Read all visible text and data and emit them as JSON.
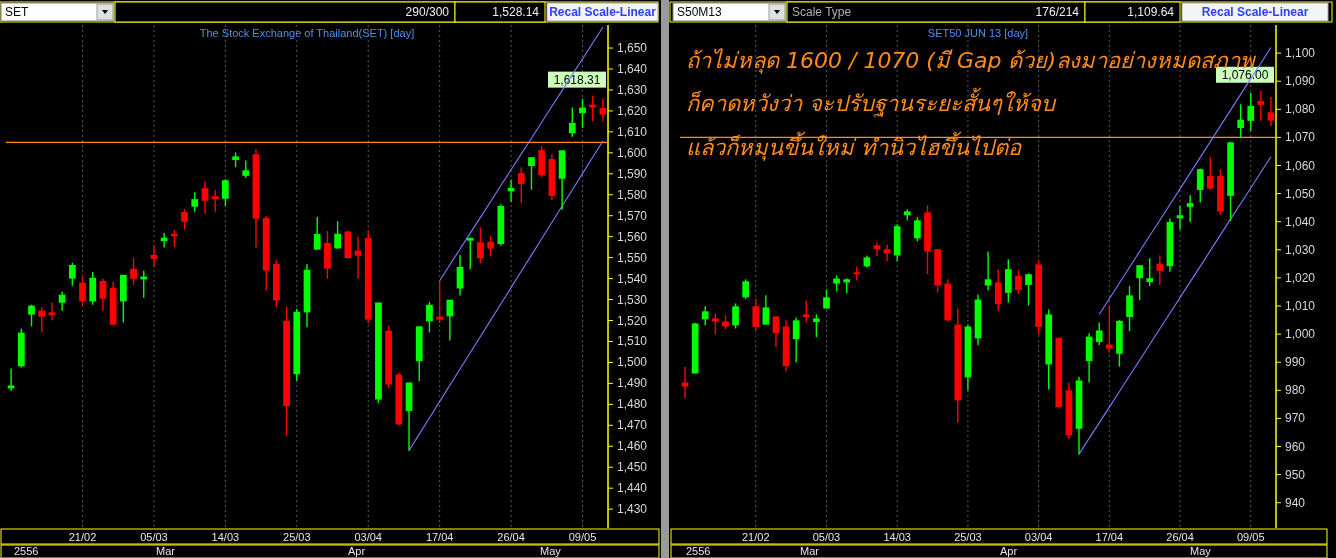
{
  "chart_data": [
    {
      "type": "candlestick",
      "title": "The Stock Exchange of Thailand(SET) [day]",
      "categories": [
        null,
        null,
        null,
        null,
        null,
        null,
        null,
        "21/02",
        null,
        null,
        null,
        null,
        null,
        null,
        "05/03",
        null,
        null,
        null,
        null,
        null,
        null,
        "14/03",
        null,
        null,
        null,
        null,
        null,
        null,
        "25/03",
        null,
        null,
        null,
        null,
        null,
        null,
        "03/04",
        null,
        null,
        null,
        null,
        null,
        null,
        "17/04",
        null,
        null,
        null,
        null,
        null,
        null,
        "26/04",
        null,
        null,
        null,
        null,
        null,
        null,
        "09/05",
        null,
        null
      ],
      "ohlc": [
        [
          1487.6,
          1497.1,
          1486.4,
          1489.0
        ],
        [
          1498.2,
          1516.1,
          1497.6,
          1514.2
        ],
        [
          1522.8,
          1527.5,
          1517.2,
          1527.1
        ],
        [
          1524.7,
          1526.3,
          1514.4,
          1521.8
        ],
        [
          1523.9,
          1528.5,
          1520.1,
          1522.5
        ],
        [
          1528.5,
          1533.7,
          1524.7,
          1532.3
        ],
        [
          1540.0,
          1547.5,
          1536.6,
          1546.5
        ],
        [
          1538.0,
          1541.0,
          1527.1,
          1529.1
        ],
        [
          1529.1,
          1543.2,
          1527.5,
          1540.4
        ],
        [
          1538.9,
          1539.9,
          1524.4,
          1530.4
        ],
        [
          1535.6,
          1538.5,
          1518.0,
          1518.0
        ],
        [
          1529.1,
          1541.8,
          1519.1,
          1541.8
        ],
        [
          1544.6,
          1549.9,
          1537.0,
          1539.9
        ],
        [
          1539.6,
          1543.7,
          1530.9,
          1541.0
        ],
        [
          1551.3,
          1555.7,
          1545.4,
          1549.4
        ],
        [
          1557.9,
          1561.7,
          1554.8,
          1559.5
        ],
        [
          1561.4,
          1563.2,
          1555.1,
          1560.3
        ],
        [
          1571.7,
          1573.2,
          1563.3,
          1567.1
        ],
        [
          1574.3,
          1581.2,
          1571.9,
          1577.9
        ],
        [
          1583.1,
          1586.5,
          1570.9,
          1577.1
        ],
        [
          1579.3,
          1582.2,
          1571.9,
          1577.9
        ],
        [
          1578.1,
          1587.4,
          1574.7,
          1586.9
        ],
        [
          1596.6,
          1600.2,
          1593.3,
          1598.3
        ],
        [
          1589.0,
          1596.4,
          1588.0,
          1591.7
        ],
        [
          1599.3,
          1601.7,
          1554.8,
          1568.6
        ],
        [
          1568.9,
          1569.8,
          1534.3,
          1543.9
        ],
        [
          1547.0,
          1548.9,
          1526.3,
          1529.6
        ],
        [
          1519.9,
          1526.6,
          1464.9,
          1479.2
        ],
        [
          1494.4,
          1525.6,
          1491.1,
          1524.2
        ],
        [
          1523.9,
          1547.0,
          1516.8,
          1544.2
        ],
        [
          1553.8,
          1569.4,
          1553.8,
          1561.3
        ],
        [
          1557.0,
          1562.7,
          1539.9,
          1544.8
        ],
        [
          1554.4,
          1567.4,
          1554.3,
          1561.4
        ],
        [
          1562.5,
          1562.8,
          1549.5,
          1549.8
        ],
        [
          1553.3,
          1559.8,
          1539.9,
          1550.9
        ],
        [
          1559.4,
          1562.8,
          1518.8,
          1520.4
        ],
        [
          1482.3,
          1528.6,
          1480.6,
          1528.6
        ],
        [
          1515.1,
          1517.5,
          1487.7,
          1489.5
        ],
        [
          1494.2,
          1495.2,
          1470.0,
          1470.4
        ],
        [
          1476.8,
          1490.4,
          1457.9,
          1490.4
        ],
        [
          1500.6,
          1517.2,
          1491.1,
          1517.2
        ],
        [
          1519.6,
          1528.9,
          1514.3,
          1527.5
        ],
        [
          1521.9,
          1538.9,
          1518.8,
          1520.4
        ],
        [
          1522.0,
          1529.9,
          1510.5,
          1529.9
        ],
        [
          1535.3,
          1551.3,
          1531.9,
          1545.6
        ],
        [
          1558.1,
          1559.6,
          1544.5,
          1559.4
        ],
        [
          1557.3,
          1564.4,
          1547.3,
          1549.7
        ],
        [
          1557.6,
          1560.3,
          1550.5,
          1554.3
        ],
        [
          1556.5,
          1575.4,
          1555.7,
          1574.7
        ],
        [
          1581.7,
          1587.2,
          1576.6,
          1583.3
        ],
        [
          1590.3,
          1593.1,
          1576.2,
          1585.2
        ],
        [
          1593.7,
          1597.9,
          1582.4,
          1597.9
        ],
        [
          1601.3,
          1603.1,
          1588.5,
          1589.3
        ],
        [
          1597.0,
          1599.3,
          1577.4,
          1579.5
        ],
        [
          1587.6,
          1601.2,
          1572.7,
          1601.2
        ],
        [
          1609.4,
          1621.6,
          1607.7,
          1614.3
        ],
        [
          1618.9,
          1625.8,
          1611.8,
          1621.6
        ],
        [
          1623.0,
          1627.3,
          1615.1,
          1621.6
        ],
        [
          1621.4,
          1625.8,
          1615.1,
          1618.3
        ]
      ],
      "series": [
        {
          "type": "line",
          "color": "#7b7bff",
          "values": [
            null,
            null,
            null,
            null,
            null,
            null,
            null,
            null,
            null,
            null,
            null,
            null,
            null,
            null,
            null,
            null,
            null,
            null,
            null,
            null,
            null,
            null,
            null,
            null,
            null,
            null,
            null,
            null,
            null,
            null,
            null,
            null,
            null,
            null,
            null,
            null,
            null,
            null,
            null,
            null,
            null,
            null,
            1539,
            1546.6,
            1554.1,
            1561.7,
            1569.2,
            1576.8,
            1584.4,
            1591.9,
            1599.5,
            1607.0,
            1614.6,
            1622.2,
            1629.7,
            1637.3,
            1644.8,
            1652.4,
            1659.9
          ]
        },
        {
          "type": "line",
          "color": "#7b7bff",
          "values": [
            null,
            null,
            null,
            null,
            null,
            null,
            null,
            null,
            null,
            null,
            null,
            null,
            null,
            null,
            null,
            null,
            null,
            null,
            null,
            null,
            null,
            null,
            null,
            null,
            null,
            null,
            null,
            null,
            null,
            null,
            null,
            null,
            null,
            null,
            null,
            null,
            null,
            null,
            null,
            1458,
            1465.8,
            1473.5,
            1481.3,
            1489.1,
            1496.9,
            1504.6,
            1512.4,
            1520.2,
            1527.9,
            1535.7,
            1543.5,
            1551.2,
            1559.0,
            1566.8,
            1574.6,
            1582.3,
            1590.1,
            1597.9,
            1605.6
          ]
        }
      ],
      "ylim": [
        1421,
        1661
      ],
      "yticks": [
        {
          "value": 1430,
          "label": "1,430"
        },
        {
          "value": 1440,
          "label": "1,440"
        },
        {
          "value": 1450,
          "label": "1,450"
        },
        {
          "value": 1460,
          "label": "1,460"
        },
        {
          "value": 1470,
          "label": "1,470"
        },
        {
          "value": 1480,
          "label": "1,480"
        },
        {
          "value": 1490,
          "label": "1,490"
        },
        {
          "value": 1500,
          "label": "1,500"
        },
        {
          "value": 1510,
          "label": "1,510"
        },
        {
          "value": 1520,
          "label": "1,520"
        },
        {
          "value": 1530,
          "label": "1,530"
        },
        {
          "value": 1540,
          "label": "1,540"
        },
        {
          "value": 1550,
          "label": "1,550"
        },
        {
          "value": 1560,
          "label": "1,560"
        },
        {
          "value": 1570,
          "label": "1,570"
        },
        {
          "value": 1580,
          "label": "1,580"
        },
        {
          "value": 1590,
          "label": "1,590"
        },
        {
          "value": 1600,
          "label": "1,600"
        },
        {
          "value": 1610,
          "label": "1,610"
        },
        {
          "value": 1620,
          "label": "1,620"
        },
        {
          "value": 1630,
          "label": "1,630"
        },
        {
          "value": 1640,
          "label": "1,640"
        },
        {
          "value": 1650,
          "label": "1,650"
        }
      ],
      "ref_lines": [
        {
          "axis": "y",
          "value": 1605,
          "color": "#ff8c1a"
        }
      ],
      "grid": "x",
      "annotations": [
        "SET",
        "290/300",
        "1,528.14",
        "Recal Scale-Linear",
        "2556",
        "Mar",
        "Apr",
        "May",
        "1,618.31"
      ]
    },
    {
      "type": "candlestick",
      "title": "SET50 JUN 13 [day]",
      "categories": [
        null,
        null,
        null,
        null,
        null,
        null,
        null,
        "21/02",
        null,
        null,
        null,
        null,
        null,
        null,
        "05/03",
        null,
        null,
        null,
        null,
        null,
        null,
        "14/03",
        null,
        null,
        null,
        null,
        null,
        null,
        "25/03",
        null,
        null,
        null,
        null,
        null,
        null,
        "03/04",
        null,
        null,
        null,
        null,
        null,
        null,
        "17/04",
        null,
        null,
        null,
        null,
        null,
        null,
        "26/04",
        null,
        null,
        null,
        null,
        null,
        null,
        "09/05",
        null,
        null
      ],
      "ohlc": [
        [
          982.8,
          988.3,
          977.1,
          981.3
        ],
        [
          986.0,
          1004.0,
          986.0,
          1003.8
        ],
        [
          1005.3,
          1009.9,
          1003.1,
          1008.1
        ],
        [
          1005.6,
          1007.4,
          999.9,
          1004.5
        ],
        [
          1004.5,
          1006.7,
          1001.8,
          1002.7
        ],
        [
          1003.1,
          1010.9,
          1002.0,
          1009.9
        ],
        [
          1013.1,
          1019.5,
          1012.5,
          1018.8
        ],
        [
          1009.9,
          1012.5,
          1001.4,
          1002.5
        ],
        [
          1003.4,
          1013.8,
          1003.2,
          1009.5
        ],
        [
          1006.3,
          1006.3,
          995.4,
          1000.4
        ],
        [
          1002.7,
          1004.9,
          986.8,
          988.6
        ],
        [
          998.2,
          1005.9,
          990.0,
          1004.9
        ],
        [
          1007.0,
          1012.0,
          1004.2,
          1006.1
        ],
        [
          1004.3,
          1007.0,
          998.9,
          1005.6
        ],
        [
          1009.1,
          1015.9,
          1009.1,
          1013.1
        ],
        [
          1018.0,
          1020.9,
          1015.2,
          1019.8
        ],
        [
          1018.4,
          1019.8,
          1014.5,
          1019.5
        ],
        [
          1022.0,
          1024.1,
          1019.1,
          1021.3
        ],
        [
          1024.1,
          1028.0,
          1023.7,
          1027.3
        ],
        [
          1031.6,
          1032.7,
          1027.7,
          1030.2
        ],
        [
          1030.2,
          1031.9,
          1025.9,
          1028.7
        ],
        [
          1028.0,
          1039.1,
          1025.9,
          1038.4
        ],
        [
          1042.3,
          1044.4,
          1040.5,
          1043.7
        ],
        [
          1034.1,
          1041.6,
          1033.0,
          1040.5
        ],
        [
          1043.3,
          1045.8,
          1021.3,
          1029.4
        ],
        [
          1030.2,
          1030.2,
          1014.8,
          1017.3
        ],
        [
          1018.0,
          1019.5,
          1004.5,
          1004.9
        ],
        [
          1003.4,
          1009.1,
          968.5,
          976.4
        ],
        [
          984.6,
          1003.4,
          979.9,
          1002.7
        ],
        [
          998.5,
          1014.1,
          996.0,
          1012.3
        ],
        [
          1017.3,
          1029.4,
          1015.6,
          1019.5
        ],
        [
          1018.4,
          1023.0,
          1008.1,
          1010.6
        ],
        [
          1014.7,
          1026.6,
          1011.2,
          1023.1
        ],
        [
          1020.7,
          1022.8,
          1014.2,
          1015.7
        ],
        [
          1017.5,
          1021.6,
          1010.2,
          1021.3
        ],
        [
          1024.8,
          1026.4,
          999.9,
          1002.6
        ],
        [
          989.2,
          1008.8,
          980.3,
          1007.0
        ],
        [
          998.7,
          998.7,
          973.8,
          974.0
        ],
        [
          980.0,
          982.7,
          962.7,
          964.0
        ],
        [
          966.3,
          984.8,
          957.2,
          983.5
        ],
        [
          990.4,
          1000.3,
          982.9,
          999.1
        ],
        [
          997.2,
          1004.1,
          996.1,
          1001.3
        ],
        [
          996.3,
          1010.0,
          993.4,
          994.8
        ],
        [
          993.0,
          1005.0,
          988.4,
          1004.7
        ],
        [
          1006.1,
          1017.1,
          1001.1,
          1013.8
        ],
        [
          1019.9,
          1024.5,
          1012.1,
          1024.5
        ],
        [
          1018.5,
          1027.0,
          1017.1,
          1019.9
        ],
        [
          1025.1,
          1028.0,
          1017.5,
          1022.5
        ],
        [
          1024.2,
          1041.1,
          1022.2,
          1039.9
        ],
        [
          1041.2,
          1045.6,
          1037.1,
          1042.3
        ],
        [
          1045.3,
          1049.4,
          1039.9,
          1046.6
        ],
        [
          1051.3,
          1058.9,
          1046.8,
          1058.7
        ],
        [
          1056.3,
          1063.1,
          1051.3,
          1051.8
        ],
        [
          1056.3,
          1058.7,
          1042.4,
          1043.6
        ],
        [
          1049.2,
          1068.5,
          1040.3,
          1068.2
        ],
        [
          1073.3,
          1081.8,
          1069.7,
          1076.3
        ],
        [
          1075.9,
          1085.8,
          1072.3,
          1081.2
        ],
        [
          1083.0,
          1086.6,
          1075.9,
          1081.6
        ],
        [
          1078.9,
          1084.4,
          1074.1,
          1076.0
        ]
      ],
      "series": [
        {
          "type": "line",
          "color": "#7b7bff",
          "values": [
            null,
            null,
            null,
            null,
            null,
            null,
            null,
            null,
            null,
            null,
            null,
            null,
            null,
            null,
            null,
            null,
            null,
            null,
            null,
            null,
            null,
            null,
            null,
            null,
            null,
            null,
            null,
            null,
            null,
            null,
            null,
            null,
            null,
            null,
            null,
            null,
            null,
            null,
            null,
            null,
            null,
            1007.0,
            1012.6,
            1018.2,
            1023.8,
            1029.4,
            1035.0,
            1040.5,
            1046.1,
            1051.7,
            1057.3,
            1062.9,
            1068.5,
            1074.1,
            1079.7,
            1085.3,
            1090.9,
            1096.4,
            1102.0
          ]
        },
        {
          "type": "line",
          "color": "#7b7bff",
          "values": [
            null,
            null,
            null,
            null,
            null,
            null,
            null,
            null,
            null,
            null,
            null,
            null,
            null,
            null,
            null,
            null,
            null,
            null,
            null,
            null,
            null,
            null,
            null,
            null,
            null,
            null,
            null,
            null,
            null,
            null,
            null,
            null,
            null,
            null,
            null,
            null,
            null,
            null,
            null,
            957.3,
            962.9,
            968.4,
            974.0,
            979.6,
            985.2,
            990.7,
            996.3,
            1001.9,
            1007.4,
            1013.0,
            1018.6,
            1024.1,
            1029.7,
            1035.3,
            1040.9,
            1046.4,
            1052.0,
            1057.6,
            1063.1
          ]
        }
      ],
      "ylim": [
        931,
        1110
      ],
      "yticks": [
        940,
        950,
        960,
        970,
        980,
        990,
        {
          "value": 1000,
          "label": "1,000"
        },
        {
          "value": 1010,
          "label": "1,010"
        },
        {
          "value": 1020,
          "label": "1,020"
        },
        {
          "value": 1030,
          "label": "1,030"
        },
        {
          "value": 1040,
          "label": "1,040"
        },
        {
          "value": 1050,
          "label": "1,050"
        },
        {
          "value": 1060,
          "label": "1,060"
        },
        {
          "value": 1070,
          "label": "1,070"
        },
        {
          "value": 1080,
          "label": "1,080"
        },
        {
          "value": 1090,
          "label": "1,090"
        },
        {
          "value": 1100,
          "label": "1,100"
        }
      ],
      "ref_lines": [
        {
          "axis": "y",
          "value": 1070,
          "color": "#ff8c1a"
        }
      ],
      "grid": "x",
      "annotations": [
        "S50M13",
        "Scale Type",
        "176/214",
        "1,109.64",
        "Recal Scale-Linear",
        "ถ้าไม่หลุด 1600 / 1070 (มี Gap ด้วย)ลงมาอย่างหมดสภาพ",
        "ก็คาดหวังว่า จะปรับฐานระยะสั้นๆให้จบ",
        "แล้วก็หมุนขึ้นใหม่ ทำนิวไฮขึ้นไปต่อ",
        "2556",
        "Mar",
        "Apr",
        "May",
        "1,076.00"
      ]
    }
  ]
}
